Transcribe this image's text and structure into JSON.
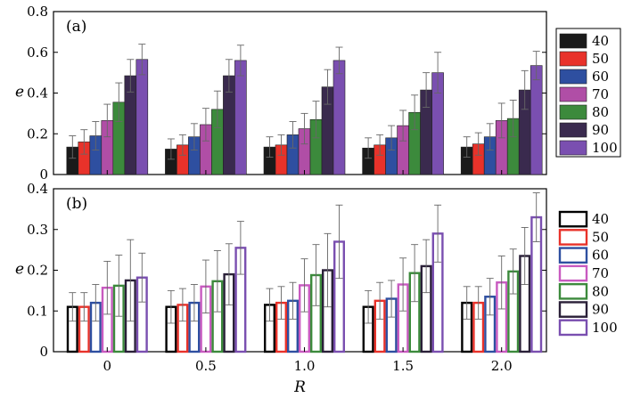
{
  "chart_data": [
    {
      "type": "bar",
      "style": "filled",
      "panel_label": "(a)",
      "categories": [
        "0",
        "0.5",
        "1.0",
        "1.5",
        "2.0"
      ],
      "xlabel": "R",
      "ylabel": "e",
      "ylim": [
        0,
        0.8
      ],
      "yticks": [
        "0",
        "0.2",
        "0.4",
        "0.6",
        "0.8"
      ],
      "legend_position": "right",
      "series": [
        {
          "name": "40",
          "color": "#1a1a1a",
          "values": [
            0.135,
            0.125,
            0.135,
            0.13,
            0.135
          ],
          "errors": [
            0.055,
            0.05,
            0.05,
            0.05,
            0.05
          ]
        },
        {
          "name": "50",
          "color": "#e8322a",
          "values": [
            0.16,
            0.145,
            0.145,
            0.145,
            0.15
          ],
          "errors": [
            0.06,
            0.05,
            0.05,
            0.05,
            0.055
          ]
        },
        {
          "name": "60",
          "color": "#2e4fa0",
          "values": [
            0.19,
            0.185,
            0.195,
            0.18,
            0.185
          ],
          "errors": [
            0.07,
            0.065,
            0.065,
            0.06,
            0.065
          ]
        },
        {
          "name": "70",
          "color": "#b04ea6",
          "values": [
            0.265,
            0.245,
            0.225,
            0.24,
            0.265
          ],
          "errors": [
            0.08,
            0.08,
            0.075,
            0.075,
            0.085
          ]
        },
        {
          "name": "80",
          "color": "#3c8a3c",
          "values": [
            0.355,
            0.32,
            0.27,
            0.305,
            0.275
          ],
          "errors": [
            0.095,
            0.09,
            0.09,
            0.085,
            0.09
          ]
        },
        {
          "name": "90",
          "color": "#3a2a4e",
          "values": [
            0.485,
            0.485,
            0.43,
            0.415,
            0.415
          ],
          "errors": [
            0.08,
            0.08,
            0.085,
            0.085,
            0.095
          ]
        },
        {
          "name": "100",
          "color": "#7a4fb0",
          "values": [
            0.565,
            0.56,
            0.56,
            0.5,
            0.535
          ],
          "errors": [
            0.075,
            0.075,
            0.065,
            0.1,
            0.07
          ]
        }
      ]
    },
    {
      "type": "bar",
      "style": "outline",
      "panel_label": "(b)",
      "categories": [
        "0",
        "0.5",
        "1.0",
        "1.5",
        "2.0"
      ],
      "xlabel": "R",
      "ylabel": "e",
      "ylim": [
        0,
        0.4
      ],
      "yticks": [
        "0",
        "0.1",
        "0.2",
        "0.3",
        "0.4"
      ],
      "legend_position": "right",
      "series": [
        {
          "name": "40",
          "color": "#000000",
          "values": [
            0.11,
            0.11,
            0.115,
            0.11,
            0.12
          ],
          "errors": [
            0.035,
            0.04,
            0.04,
            0.04,
            0.04
          ]
        },
        {
          "name": "50",
          "color": "#e8322a",
          "values": [
            0.11,
            0.115,
            0.12,
            0.125,
            0.12
          ],
          "errors": [
            0.035,
            0.04,
            0.04,
            0.045,
            0.04
          ]
        },
        {
          "name": "60",
          "color": "#2e4fa0",
          "values": [
            0.12,
            0.12,
            0.125,
            0.13,
            0.135
          ],
          "errors": [
            0.045,
            0.045,
            0.045,
            0.045,
            0.045
          ]
        },
        {
          "name": "70",
          "color": "#c85ac0",
          "values": [
            0.157,
            0.16,
            0.163,
            0.165,
            0.17
          ],
          "errors": [
            0.065,
            0.065,
            0.065,
            0.065,
            0.065
          ]
        },
        {
          "name": "80",
          "color": "#3c8a3c",
          "values": [
            0.162,
            0.173,
            0.188,
            0.193,
            0.197
          ],
          "errors": [
            0.075,
            0.075,
            0.075,
            0.07,
            0.055
          ]
        },
        {
          "name": "90",
          "color": "#2a2038",
          "values": [
            0.175,
            0.19,
            0.2,
            0.21,
            0.235
          ],
          "errors": [
            0.1,
            0.075,
            0.09,
            0.065,
            0.07
          ]
        },
        {
          "name": "100",
          "color": "#7a4fb0",
          "values": [
            0.182,
            0.255,
            0.27,
            0.29,
            0.33
          ],
          "errors": [
            0.06,
            0.065,
            0.09,
            0.07,
            0.06
          ]
        }
      ]
    }
  ]
}
